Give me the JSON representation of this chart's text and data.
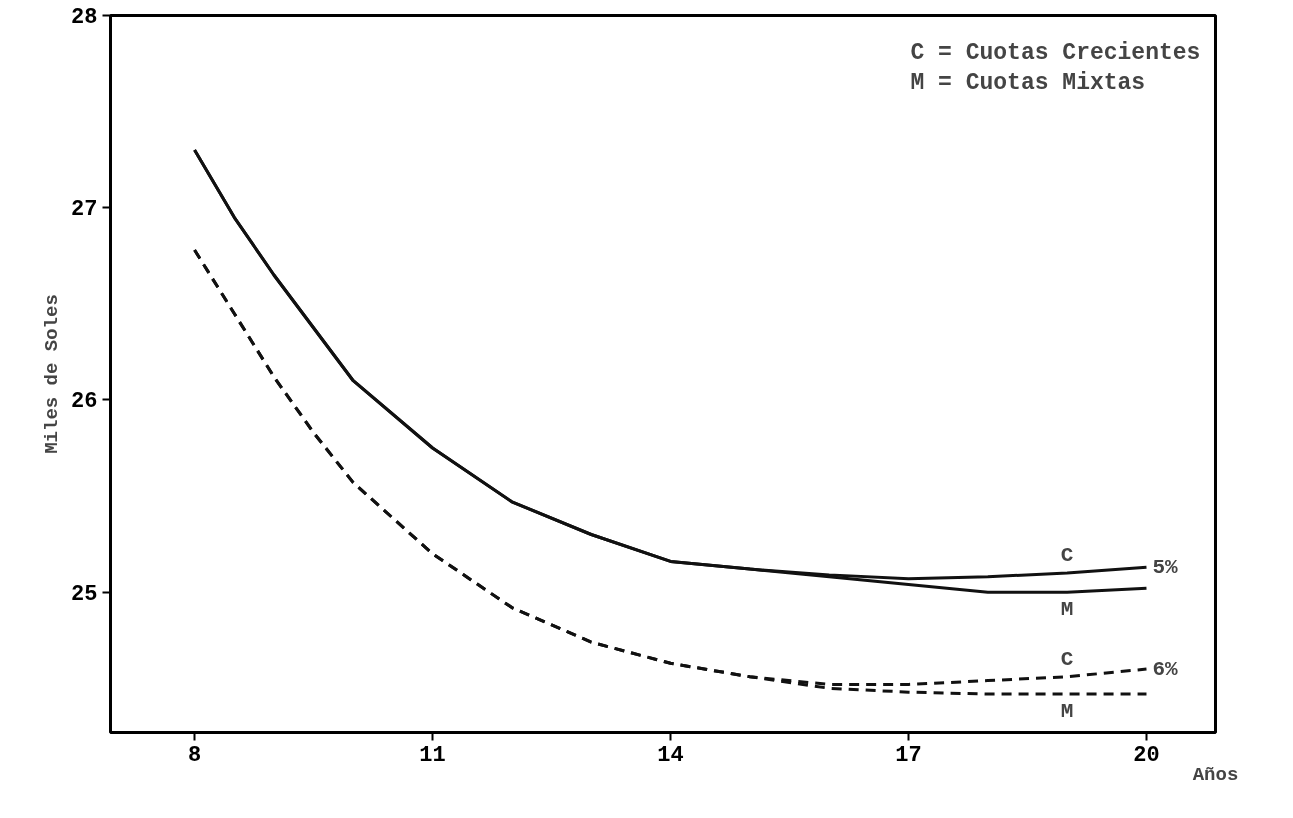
{
  "chart_data": {
    "type": "line",
    "xlabel": "Años",
    "ylabel": "Miles de Soles",
    "xlim": [
      6.94,
      20.87
    ],
    "ylim": [
      24.27,
      28
    ],
    "xticks": [
      8,
      11,
      14,
      17,
      20
    ],
    "yticks": [
      25,
      26,
      27,
      28
    ],
    "grid": false,
    "legend": false,
    "marker": "none",
    "series": [
      {
        "name": "C",
        "color": "#111111",
        "line_style": "solid",
        "x": [
          8,
          8.5,
          9,
          10,
          11,
          12,
          13,
          14,
          15,
          16,
          17,
          18,
          19,
          20
        ],
        "values": [
          27.3,
          26.95,
          26.65,
          26.1,
          25.75,
          25.47,
          25.3,
          25.16,
          25.12,
          25.09,
          25.07,
          25.08,
          25.1,
          25.13
        ]
      },
      {
        "name": "M",
        "color": "#111111",
        "line_style": "solid",
        "x": [
          8,
          8.5,
          9,
          10,
          11,
          12,
          13,
          14,
          15,
          16,
          17,
          18,
          19,
          20
        ],
        "values": [
          27.3,
          26.95,
          26.65,
          26.1,
          25.75,
          25.47,
          25.3,
          25.16,
          25.12,
          25.08,
          25.04,
          25.0,
          25.0,
          25.02
        ]
      },
      {
        "name": "C",
        "color": "#111111",
        "line_style": "dashed",
        "x": [
          8,
          8.5,
          9,
          9.5,
          10,
          11,
          12,
          13,
          14,
          15,
          16,
          17,
          18,
          19,
          20
        ],
        "values": [
          26.78,
          26.45,
          26.12,
          25.83,
          25.57,
          25.2,
          24.92,
          24.74,
          24.63,
          24.56,
          24.52,
          24.52,
          24.54,
          24.56,
          24.6
        ]
      },
      {
        "name": "M",
        "color": "#111111",
        "line_style": "dashed",
        "x": [
          8,
          8.5,
          9,
          9.5,
          10,
          11,
          12,
          13,
          14,
          15,
          16,
          17,
          18,
          19,
          20
        ],
        "values": [
          26.78,
          26.45,
          26.12,
          25.83,
          25.57,
          25.2,
          24.92,
          24.74,
          24.63,
          24.56,
          24.5,
          24.48,
          24.47,
          24.47,
          24.47
        ]
      }
    ],
    "annotations": [
      "C = Cuotas Crecientes",
      "M = Cuotas Mixtas",
      {
        "text": "5%",
        "x": 20,
        "y": 25.13
      },
      {
        "text": "6%",
        "x": 20,
        "y": 24.6
      }
    ]
  }
}
